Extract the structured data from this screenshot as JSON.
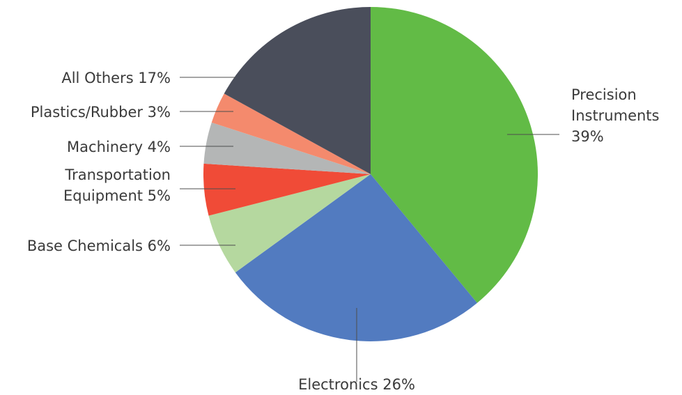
{
  "chart_data": {
    "type": "pie",
    "title": "",
    "slices": [
      {
        "name": "Precision Instruments",
        "value": 39,
        "label_lines": [
          "Precision",
          "Instruments",
          "39%"
        ],
        "color": "#62bb46"
      },
      {
        "name": "Electronics",
        "value": 26,
        "label_lines": [
          "Electronics 26%"
        ],
        "color": "#527bc0"
      },
      {
        "name": "Base Chemicals",
        "value": 6,
        "label_lines": [
          "Base Chemicals 6%"
        ],
        "color": "#b5d89f"
      },
      {
        "name": "Transportation Equipment",
        "value": 5,
        "label_lines": [
          "Transportation",
          "Equipment 5%"
        ],
        "color": "#f04b37"
      },
      {
        "name": "Machinery",
        "value": 4,
        "label_lines": [
          "Machinery 4%"
        ],
        "color": "#b4b6b6"
      },
      {
        "name": "Plastics/Rubber",
        "value": 3,
        "label_lines": [
          "Plastics/Rubber 3%"
        ],
        "color": "#f48a6d"
      },
      {
        "name": "All Others",
        "value": 17,
        "label_lines": [
          "All Others 17%"
        ],
        "color": "#4a4e5b"
      }
    ],
    "start": "12 o'clock",
    "direction": "clockwise",
    "legend": "none (leader-line labels)"
  }
}
